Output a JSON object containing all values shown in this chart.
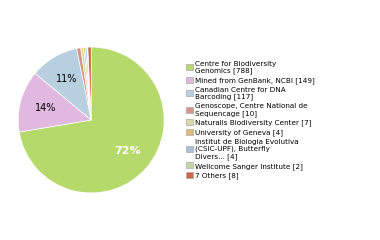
{
  "labels": [
    "Centre for Biodiversity\nGenomics [788]",
    "Mined from GenBank, NCBI [149]",
    "Canadian Centre for DNA\nBarcoding [117]",
    "Genoscope, Centre National de\nSequencage [10]",
    "Naturalis Biodiversity Center [7]",
    "University of Geneva [4]",
    "Institut de Biologia Evolutiva\n(CSIC-UPF), Butterfly\nDivers... [4]",
    "Wellcome Sanger Institute [2]",
    "7 Others [8]"
  ],
  "values": [
    788,
    149,
    117,
    10,
    7,
    4,
    4,
    2,
    8
  ],
  "colors": [
    "#b5d96b",
    "#e0b8e0",
    "#b8cfe0",
    "#d4948a",
    "#dcd9a8",
    "#e0b87a",
    "#a8c0d8",
    "#c0d8a8",
    "#cc6644"
  ],
  "figsize": [
    3.8,
    2.4
  ],
  "dpi": 100
}
